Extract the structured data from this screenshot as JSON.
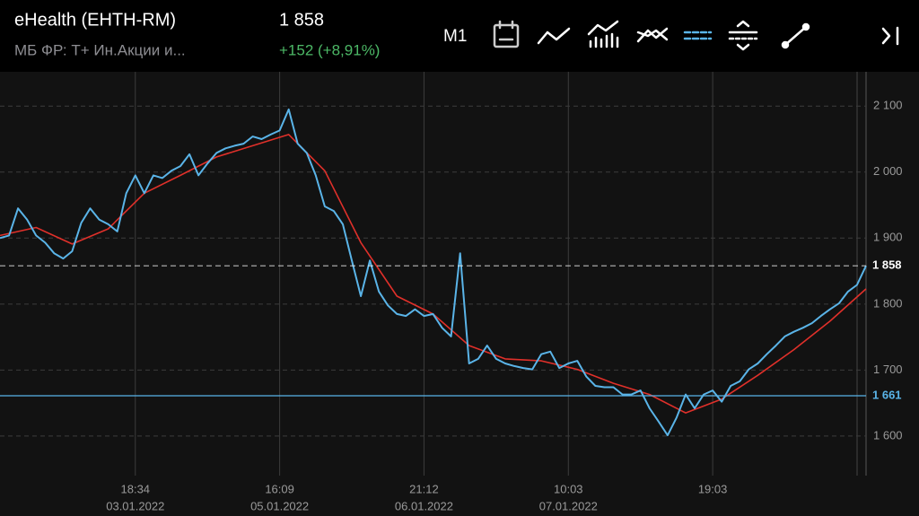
{
  "header": {
    "title": "eHealth (EHTH-RM)",
    "subtitle": "МБ ФР: Т+ Ин.Акции и...",
    "price": "1 858",
    "change": "+152 (+8,91%)",
    "timeframe": "M1"
  },
  "chart_data": {
    "type": "line",
    "xlim": [
      0,
      96
    ],
    "ylim": [
      1540,
      2152
    ],
    "yticks": [
      {
        "value": 1600,
        "label": "1 600"
      },
      {
        "value": 1700,
        "label": "1 700"
      },
      {
        "value": 1800,
        "label": "1 800"
      },
      {
        "value": 1900,
        "label": "1 900"
      },
      {
        "value": 2000,
        "label": "2 000"
      },
      {
        "value": 2100,
        "label": "2 100"
      }
    ],
    "xticks": [
      {
        "value": 15,
        "label": "18:34"
      },
      {
        "value": 31,
        "label": "16:09"
      },
      {
        "value": 47,
        "label": "21:12"
      },
      {
        "value": 63,
        "label": "10:03"
      },
      {
        "value": 79,
        "label": "19:03"
      }
    ],
    "xtick_dates": [
      "03.01.2022",
      "05.01.2022",
      "06.01.2022",
      "07.01.2022"
    ],
    "reference_lines": [
      {
        "value": 1858,
        "label": "1 858",
        "color": "#ffffff",
        "style": "dashed"
      },
      {
        "value": 1661,
        "label": "1 661",
        "color": "#5ab4e8",
        "style": "solid"
      }
    ],
    "grid": true,
    "series": [
      {
        "color": "#5ab4e8",
        "x": [
          0,
          1,
          2,
          3,
          4,
          5,
          6,
          7,
          8,
          9,
          10,
          11,
          12,
          13,
          14,
          15,
          16,
          17,
          18,
          19,
          20,
          21,
          22,
          23,
          24,
          25,
          26,
          27,
          28,
          29,
          30,
          31,
          32,
          33,
          34,
          35,
          36,
          37,
          38,
          39,
          40,
          41,
          42,
          43,
          44,
          45,
          46,
          47,
          48,
          49,
          50,
          51,
          52,
          53,
          54,
          55,
          56,
          57,
          58,
          59,
          60,
          61,
          62,
          63,
          64,
          65,
          66,
          67,
          68,
          69,
          70,
          71,
          72,
          73,
          74,
          75,
          76,
          77,
          78,
          79,
          80,
          81,
          82,
          83,
          84,
          85,
          86,
          87,
          88,
          89,
          90,
          91,
          92,
          93,
          94,
          95,
          96
        ],
        "values": [
          1900,
          1904,
          1945,
          1928,
          1904,
          1893,
          1877,
          1869,
          1880,
          1923,
          1945,
          1928,
          1921,
          1910,
          1968,
          1995,
          1968,
          1995,
          1991,
          2002,
          2009,
          2027,
          1995,
          2013,
          2029,
          2036,
          2040,
          2043,
          2054,
          2050,
          2057,
          2063,
          2095,
          2043,
          2029,
          1995,
          1948,
          1941,
          1921,
          1866,
          1812,
          1866,
          1819,
          1798,
          1785,
          1782,
          1792,
          1782,
          1785,
          1764,
          1751,
          1877,
          1710,
          1717,
          1737,
          1717,
          1710,
          1706,
          1703,
          1701,
          1724,
          1728,
          1703,
          1710,
          1714,
          1690,
          1676,
          1674,
          1674,
          1663,
          1663,
          1669,
          1642,
          1622,
          1601,
          1628,
          1663,
          1642,
          1663,
          1669,
          1652,
          1676,
          1683,
          1701,
          1710,
          1724,
          1737,
          1751,
          1758,
          1764,
          1771,
          1782,
          1792,
          1801,
          1819,
          1829,
          1858
        ]
      },
      {
        "color": "#e0302a",
        "x": [
          0,
          4,
          8,
          12,
          16,
          20,
          24,
          28,
          32,
          36,
          40,
          44,
          48,
          52,
          56,
          60,
          64,
          68,
          72,
          76,
          80,
          84,
          88,
          92,
          96
        ],
        "values": [
          1904,
          1916,
          1891,
          1914,
          1968,
          1995,
          2023,
          2040,
          2057,
          2002,
          1893,
          1812,
          1785,
          1737,
          1717,
          1714,
          1701,
          1680,
          1663,
          1635,
          1656,
          1692,
          1731,
          1774,
          1823
        ]
      }
    ]
  }
}
